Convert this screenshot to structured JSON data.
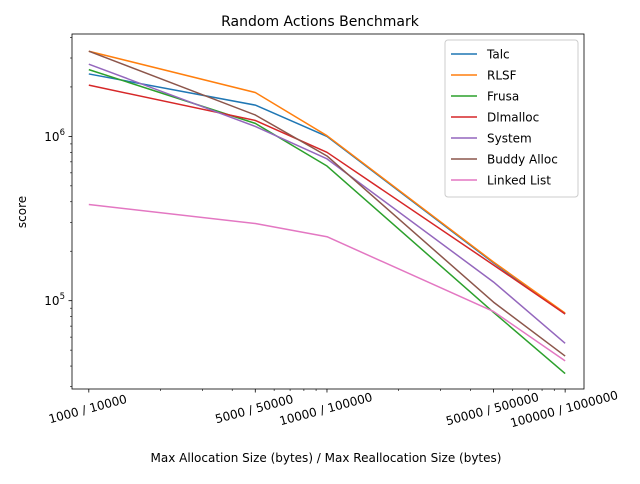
{
  "chart_data": {
    "type": "line",
    "title": "Random Actions Benchmark",
    "xlabel": "Max Allocation Size (bytes) / Max Reallocation Size (bytes)",
    "ylabel": "score",
    "x_scale": "log",
    "y_scale": "log",
    "x": [
      1000,
      5000,
      10000,
      50000,
      100000
    ],
    "xtick_labels": [
      "1000 / 10000",
      "5000 / 50000",
      "10000 / 100000",
      "50000 / 500000",
      "100000 / 1000000"
    ],
    "xlim": [
      850,
      120000
    ],
    "ylim": [
      29000,
      4200000
    ],
    "ytick_labels": [
      {
        "value": 100000,
        "base": "10",
        "exp": "5"
      },
      {
        "value": 1000000,
        "base": "10",
        "exp": "6"
      }
    ],
    "grid": false,
    "legend_position": "top-right",
    "series": [
      {
        "name": "Talc",
        "color": "#1f77b4",
        "values": [
          2400000,
          1550000,
          1000000,
          170000,
          83000
        ]
      },
      {
        "name": "RLSF",
        "color": "#ff7f0e",
        "values": [
          3300000,
          1850000,
          1010000,
          172000,
          84000
        ]
      },
      {
        "name": "Frusa",
        "color": "#2ca02c",
        "values": [
          2550000,
          1200000,
          660000,
          85000,
          36000
        ]
      },
      {
        "name": "Dlmalloc",
        "color": "#d62728",
        "values": [
          2050000,
          1250000,
          800000,
          165000,
          83000
        ]
      },
      {
        "name": "System",
        "color": "#9467bd",
        "values": [
          2750000,
          1150000,
          730000,
          130000,
          55000
        ]
      },
      {
        "name": "Buddy Alloc",
        "color": "#8c564b",
        "values": [
          3300000,
          1350000,
          760000,
          98000,
          46000
        ]
      },
      {
        "name": "Linked List",
        "color": "#e377c2",
        "values": [
          385000,
          295000,
          245000,
          86000,
          43000
        ]
      }
    ]
  }
}
